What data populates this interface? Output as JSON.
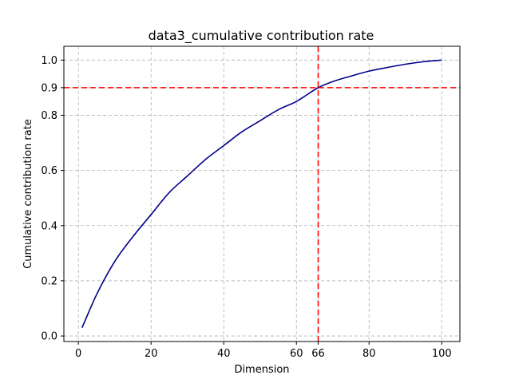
{
  "chart_data": {
    "type": "line",
    "title": "data3_cumulative contribution rate",
    "xlabel": "Dimension",
    "ylabel": "Cumulative contribution rate",
    "xlim": [
      -4,
      105
    ],
    "ylim": [
      -0.02,
      1.05
    ],
    "xticks": [
      0,
      20,
      40,
      60,
      66,
      80,
      100
    ],
    "xtick_labels": [
      "0",
      "20",
      "40",
      "60",
      "66",
      "80",
      "100"
    ],
    "yticks": [
      0.0,
      0.2,
      0.4,
      0.6,
      0.8,
      0.9,
      1.0
    ],
    "ytick_labels": [
      "0.0",
      "0.2",
      "0.4",
      "0.6",
      "0.8",
      "0.9",
      "1.0"
    ],
    "grid": true,
    "series": [
      {
        "color": "#00008b",
        "x": [
          1,
          5,
          10,
          15,
          20,
          25,
          30,
          35,
          40,
          45,
          50,
          55,
          60,
          66,
          70,
          75,
          80,
          85,
          90,
          95,
          100
        ],
        "y": [
          0.03,
          0.15,
          0.27,
          0.36,
          0.44,
          0.52,
          0.58,
          0.64,
          0.69,
          0.74,
          0.78,
          0.82,
          0.85,
          0.9,
          0.922,
          0.942,
          0.96,
          0.973,
          0.985,
          0.994,
          1.0
        ]
      }
    ],
    "reference_lines": [
      {
        "orientation": "horizontal",
        "value": 0.9,
        "color": "#ff0000",
        "style": "dashed"
      },
      {
        "orientation": "vertical",
        "value": 66,
        "color": "#ff0000",
        "style": "dashed"
      }
    ]
  }
}
